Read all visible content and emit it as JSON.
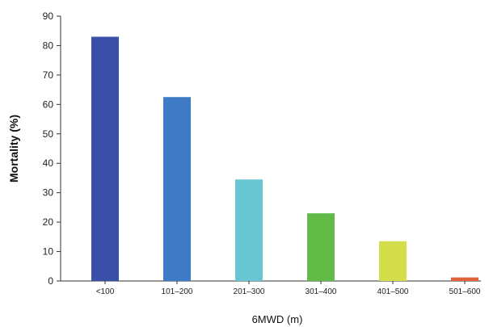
{
  "chart_data": {
    "type": "bar",
    "title": "",
    "xlabel": "6MWD (m)",
    "ylabel": "Mortality (%)",
    "ylim": [
      0,
      90
    ],
    "yticks": [
      0,
      10,
      20,
      30,
      40,
      50,
      60,
      70,
      80,
      90
    ],
    "grid": false,
    "categories": [
      "<100",
      "101–200",
      "201–300",
      "301–400",
      "401–500",
      "501–600"
    ],
    "values": [
      83,
      62.5,
      34.5,
      23,
      13.5,
      1.2
    ],
    "colors": [
      "#3a4fa8",
      "#3f7bc4",
      "#67c6d1",
      "#62bb46",
      "#d4dd4a",
      "#e1623a"
    ]
  }
}
